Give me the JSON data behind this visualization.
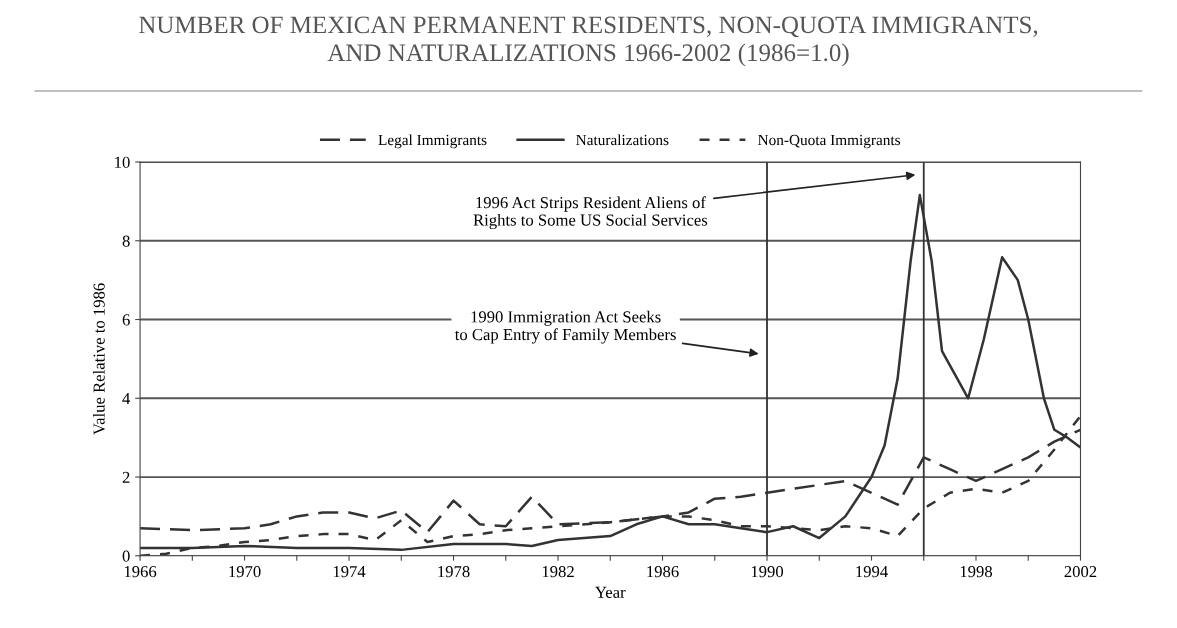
{
  "chart_data": {
    "type": "line",
    "title": "NUMBER OF MEXICAN PERMANENT RESIDENTS, NON-QUOTA IMMIGRANTS,\nAND NATURALIZATIONS 1966-2002 (1986=1.0)",
    "xlabel": "Year",
    "ylabel": "Value Relative to 1986",
    "series": [
      {
        "name": "Legal Immigrants",
        "color": "#333333",
        "line_style": "dashed",
        "x": [
          1966,
          1968,
          1970,
          1971,
          1972,
          1973,
          1974,
          1975,
          1976,
          1977,
          1978,
          1979,
          1980,
          1981,
          1982,
          1984,
          1986,
          1987,
          1988,
          1989,
          1990,
          1991,
          1992,
          1993,
          1994,
          1995,
          1996,
          1997,
          1998,
          1999,
          2000,
          2001,
          2002
        ],
        "values": [
          0.7,
          0.65,
          0.7,
          0.8,
          1.0,
          1.1,
          1.1,
          0.95,
          1.15,
          0.6,
          1.4,
          0.8,
          0.75,
          1.5,
          0.8,
          0.85,
          1.0,
          1.1,
          1.45,
          1.5,
          1.6,
          1.7,
          1.8,
          1.9,
          1.6,
          1.3,
          2.5,
          2.2,
          1.9,
          2.2,
          2.5,
          2.9,
          3.2
        ]
      },
      {
        "name": "Naturalizations",
        "color": "#333333",
        "line_style": "solid",
        "x": [
          1966,
          1968,
          1970,
          1972,
          1974,
          1976,
          1978,
          1980,
          1981,
          1982,
          1984,
          1985,
          1986,
          1987,
          1988,
          1989,
          1990,
          1991,
          1992,
          1993,
          1994,
          1994.5,
          1995,
          1995.5,
          1995.85,
          1996.3,
          1996.7,
          1997.7,
          1998.3,
          1999,
          1999.6,
          2000,
          2000.6,
          2001,
          2001.5,
          2002
        ],
        "values": [
          0.2,
          0.2,
          0.25,
          0.2,
          0.2,
          0.15,
          0.3,
          0.3,
          0.25,
          0.4,
          0.5,
          0.8,
          1.0,
          0.8,
          0.8,
          0.7,
          0.6,
          0.75,
          0.45,
          1.0,
          2.0,
          2.8,
          4.5,
          7.5,
          9.16,
          7.5,
          5.2,
          4.0,
          5.5,
          7.58,
          7.0,
          6.0,
          4.0,
          3.2,
          3.0,
          2.75
        ]
      },
      {
        "name": "Non-Quota Immigrants",
        "color": "#333333",
        "line_style": "dotted",
        "x": [
          1966,
          1967,
          1968,
          1969,
          1970,
          1971,
          1972,
          1973,
          1974,
          1975,
          1976,
          1977,
          1978,
          1979,
          1980,
          1981,
          1982,
          1984,
          1986,
          1987,
          1988,
          1989,
          1990,
          1991,
          1992,
          1993,
          1994,
          1995,
          1996,
          1997,
          1998,
          1999,
          2000,
          2001,
          2002
        ],
        "values": [
          0.0,
          0.05,
          0.2,
          0.25,
          0.35,
          0.4,
          0.5,
          0.55,
          0.55,
          0.4,
          0.9,
          0.35,
          0.5,
          0.55,
          0.65,
          0.7,
          0.75,
          0.85,
          1.0,
          1.0,
          0.9,
          0.75,
          0.75,
          0.7,
          0.65,
          0.75,
          0.7,
          0.5,
          1.2,
          1.6,
          1.7,
          1.6,
          1.9,
          2.7,
          3.55
        ]
      }
    ],
    "xlim": [
      1966,
      2002
    ],
    "xticks": [
      1966,
      {
        "value": 1968,
        "label": null
      },
      1970,
      {
        "value": 1972,
        "label": null
      },
      1974,
      {
        "value": 1976,
        "label": null
      },
      1978,
      {
        "value": 1980,
        "label": null
      },
      1982,
      {
        "value": 1984,
        "label": null
      },
      1986,
      {
        "value": 1988,
        "label": null
      },
      1990,
      {
        "value": 1992,
        "label": null
      },
      1994,
      {
        "value": 1996,
        "label": null
      },
      1998,
      {
        "value": 2000,
        "label": null
      },
      2002
    ],
    "ylim": [
      0,
      10
    ],
    "yticks": [
      0,
      2,
      4,
      6,
      8,
      10
    ],
    "grid": "y",
    "legend": "top",
    "ref_lines": [
      {
        "axis": "x",
        "value": 1990
      },
      {
        "axis": "x",
        "value": 1996
      }
    ],
    "annotations": [
      "1990 Immigration Act Seeks\nto Cap Entry of Family Members",
      "1996 Act Strips Resident Aliens of\nRights to Some US Social Services"
    ]
  }
}
